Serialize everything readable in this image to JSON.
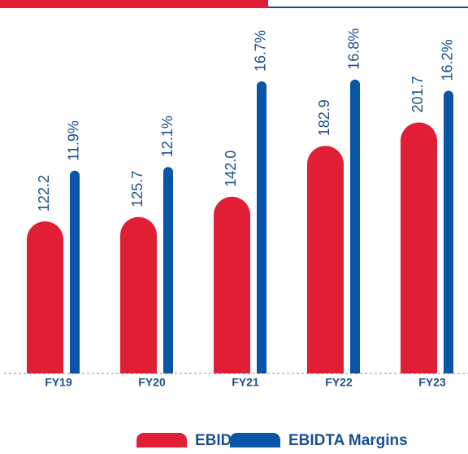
{
  "chart_data": {
    "type": "bar",
    "categories": [
      "FY19",
      "FY20",
      "FY21",
      "FY22",
      "FY23"
    ],
    "series": [
      {
        "name": "EBIDTA",
        "color": "#e01e35",
        "values": [
          122.2,
          125.7,
          142.0,
          182.9,
          201.7
        ],
        "value_labels": [
          "122.2",
          "125.7",
          "142.0",
          "182.9",
          "201.7"
        ]
      },
      {
        "name": "EBIDTA Margins",
        "color": "#0a56a6",
        "axis": "y2",
        "values": [
          11.9,
          12.1,
          16.7,
          16.8,
          16.2
        ],
        "value_labels": [
          "11.9%",
          "12.1%",
          "16.7%",
          "16.8%",
          "16.2%"
        ]
      }
    ],
    "ylim": [
      0,
      287
    ],
    "y2lim": [
      1,
      20.2
    ]
  }
}
